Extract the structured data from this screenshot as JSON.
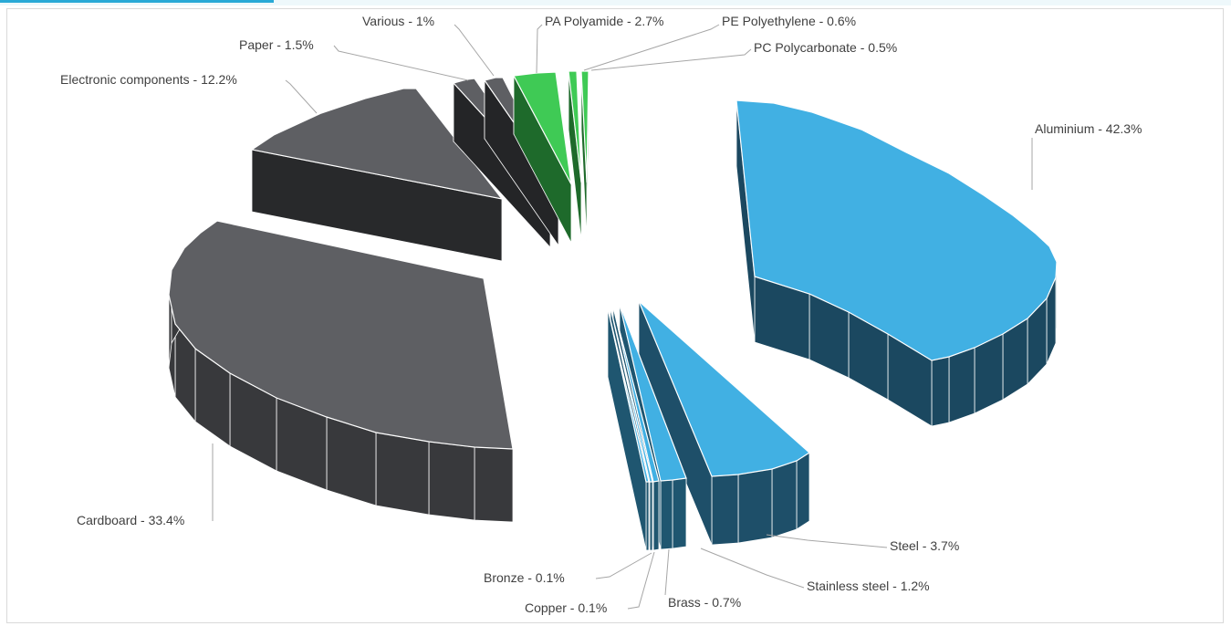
{
  "chart_data": {
    "type": "pie",
    "title": "",
    "slices": [
      {
        "label": "Aluminium - 42.3%",
        "value": 42.3,
        "color": "#41b0e3"
      },
      {
        "label": "Steel - 3.7%",
        "value": 3.7,
        "color": "#41b0e3"
      },
      {
        "label": "Stainless steel - 1.2%",
        "value": 1.2,
        "color": "#41b0e3"
      },
      {
        "label": "Brass - 0.7%",
        "value": 0.7,
        "color": "#41b0e3"
      },
      {
        "label": "Copper - 0.1%",
        "value": 0.1,
        "color": "#41b0e3"
      },
      {
        "label": "Bronze - 0.1%",
        "value": 0.1,
        "color": "#41b0e3"
      },
      {
        "label": "Cardboard - 33.4%",
        "value": 33.4,
        "color": "#5e5f63"
      },
      {
        "label": "Electronic components - 12.2%",
        "value": 12.2,
        "color": "#5e5f63"
      },
      {
        "label": "Paper - 1.5%",
        "value": 1.5,
        "color": "#5e5f63"
      },
      {
        "label": "Various - 1%",
        "value": 1.0,
        "color": "#5e5f63"
      },
      {
        "label": "PA Polyamide - 2.7%",
        "value": 2.7,
        "color": "#3fca55"
      },
      {
        "label": "PE Polyethylene - 0.6%",
        "value": 0.6,
        "color": "#3fca55"
      },
      {
        "label": "PC Polycarbonate - 0.5%",
        "value": 0.5,
        "color": "#3fca55"
      }
    ],
    "legend": "none",
    "style": "3d-exploded"
  }
}
